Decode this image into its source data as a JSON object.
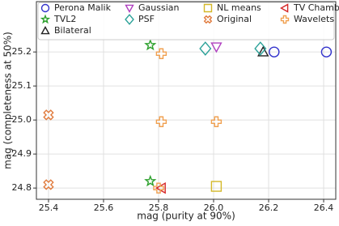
{
  "chart_data": {
    "type": "scatter",
    "xlabel": "mag (purity at 90%)",
    "ylabel": "mag (completeness at 50%)",
    "xlim": [
      25.356,
      26.444
    ],
    "xticks": [
      25.4,
      25.6,
      25.8,
      {
        "value": 26.0,
        "label": "26.0"
      },
      26.2,
      26.4
    ],
    "ylim": [
      24.767,
      25.348
    ],
    "yticks": [
      24.8,
      24.9,
      {
        "value": 25.0,
        "label": "25.0"
      },
      25.1,
      25.2
    ],
    "grid": true,
    "legend": "top",
    "series": [
      {
        "name": "Perona Malik",
        "color": "#3333cc",
        "marker": "circle",
        "x": [
          26.22,
          26.41
        ],
        "y": [
          25.2,
          25.2
        ]
      },
      {
        "name": "TVL2",
        "color": "#2ca02c",
        "marker": "star",
        "x": [
          25.77,
          25.77
        ],
        "y": [
          25.22,
          24.82
        ]
      },
      {
        "name": "Bilateral",
        "color": "#222222",
        "marker": "triangle-up",
        "x": [
          26.18
        ],
        "y": [
          25.2
        ]
      },
      {
        "name": "Gaussian",
        "color": "#b040c0",
        "marker": "triangle-down",
        "x": [
          26.01
        ],
        "y": [
          25.215
        ]
      },
      {
        "name": "PSF",
        "color": "#2aa198",
        "marker": "diamond",
        "x": [
          25.97,
          26.17
        ],
        "y": [
          25.21,
          25.21
        ]
      },
      {
        "name": "NL means",
        "color": "#d4b828",
        "marker": "square",
        "x": [
          26.01
        ],
        "y": [
          24.805
        ]
      },
      {
        "name": "Original",
        "color": "#e07a3c",
        "marker": "x",
        "x": [
          25.4,
          25.4
        ],
        "y": [
          25.015,
          24.81
        ]
      },
      {
        "name": "TV Chambolle",
        "color": "#d62728",
        "marker": "triangle-left",
        "x": [
          25.81
        ],
        "y": [
          24.8
        ]
      },
      {
        "name": "Wavelets",
        "color": "#f0a050",
        "marker": "plus",
        "x": [
          25.81,
          25.81,
          26.01,
          25.8
        ],
        "y": [
          25.195,
          24.995,
          24.995,
          24.8
        ]
      }
    ]
  }
}
